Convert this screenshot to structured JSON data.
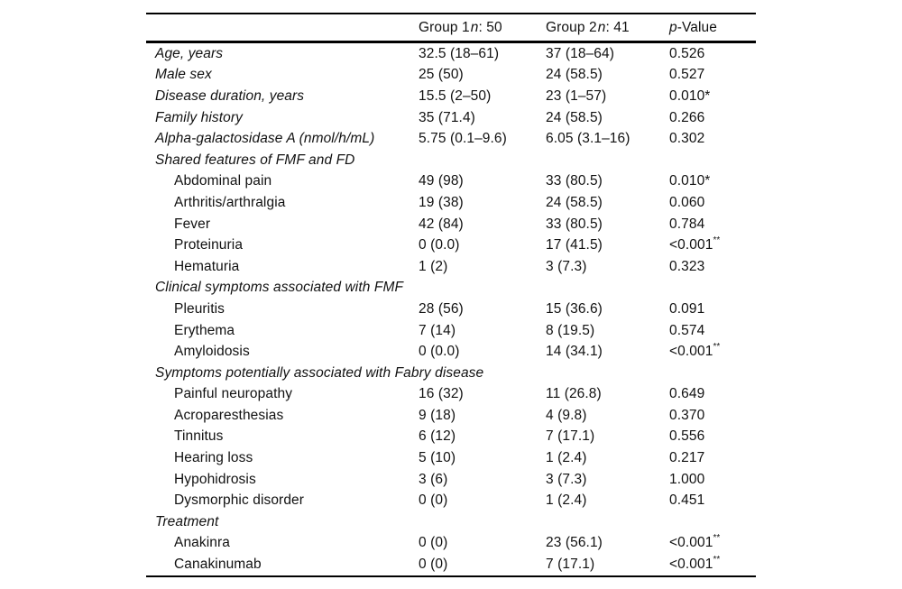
{
  "table": {
    "header": {
      "group1": {
        "prefix": "Group 1",
        "n": "n",
        "suffix": ": 50"
      },
      "group2": {
        "prefix": "Group 2",
        "n": "n",
        "suffix": ": 41"
      },
      "pvalue": {
        "p": "p",
        "suffix": "-Value"
      }
    },
    "rows": [
      {
        "type": "top",
        "label": "Age, years",
        "g1": "32.5 (18–61)",
        "g2": "37 (18–64)",
        "p": "0.526",
        "p_sup": ""
      },
      {
        "type": "top",
        "label": "Male sex",
        "g1": "25 (50)",
        "g2": "24 (58.5)",
        "p": "0.527",
        "p_sup": ""
      },
      {
        "type": "top",
        "label": "Disease duration, years",
        "g1": "15.5 (2–50)",
        "g2": "23 (1–57)",
        "p": "0.010*",
        "p_sup": ""
      },
      {
        "type": "top",
        "label": "Family history",
        "g1": "35 (71.4)",
        "g2": "24 (58.5)",
        "p": "0.266",
        "p_sup": ""
      },
      {
        "type": "top",
        "label": "Alpha-galactosidase A (nmol/h/mL)",
        "g1": "5.75 (0.1–9.6)",
        "g2": "6.05 (3.1–16)",
        "p": "0.302",
        "p_sup": ""
      },
      {
        "type": "section",
        "label": "Shared features of FMF and FD",
        "g1": "",
        "g2": "",
        "p": "",
        "p_sup": ""
      },
      {
        "type": "sub",
        "label": "Abdominal pain",
        "g1": "49 (98)",
        "g2": "33 (80.5)",
        "p": "0.010*",
        "p_sup": ""
      },
      {
        "type": "sub",
        "label": "Arthritis/arthralgia",
        "g1": "19 (38)",
        "g2": "24 (58.5)",
        "p": "0.060",
        "p_sup": ""
      },
      {
        "type": "sub",
        "label": "Fever",
        "g1": "42 (84)",
        "g2": "33 (80.5)",
        "p": "0.784",
        "p_sup": ""
      },
      {
        "type": "sub",
        "label": "Proteinuria",
        "g1": "0 (0.0)",
        "g2": "17 (41.5)",
        "p": "<0.001",
        "p_sup": "**"
      },
      {
        "type": "sub",
        "label": "Hematuria",
        "g1": "1 (2)",
        "g2": "3 (7.3)",
        "p": "0.323",
        "p_sup": ""
      },
      {
        "type": "section",
        "label": "Clinical symptoms associated with FMF",
        "g1": "",
        "g2": "",
        "p": "",
        "p_sup": ""
      },
      {
        "type": "sub",
        "label": "Pleuritis",
        "g1": "28 (56)",
        "g2": "15 (36.6)",
        "p": "0.091",
        "p_sup": ""
      },
      {
        "type": "sub",
        "label": "Erythema",
        "g1": "7 (14)",
        "g2": "8 (19.5)",
        "p": "0.574",
        "p_sup": ""
      },
      {
        "type": "sub",
        "label": "Amyloidosis",
        "g1": "0 (0.0)",
        "g2": "14 (34.1)",
        "p": "<0.001",
        "p_sup": "**"
      },
      {
        "type": "section",
        "label": "Symptoms potentially associated with Fabry disease",
        "g1": "",
        "g2": "",
        "p": "",
        "p_sup": ""
      },
      {
        "type": "sub",
        "label": "Painful neuropathy",
        "g1": "16 (32)",
        "g2": "11 (26.8)",
        "p": "0.649",
        "p_sup": ""
      },
      {
        "type": "sub",
        "label": "Acroparesthesias",
        "g1": "9 (18)",
        "g2": "4 (9.8)",
        "p": "0.370",
        "p_sup": ""
      },
      {
        "type": "sub",
        "label": "Tinnitus",
        "g1": "6 (12)",
        "g2": "7 (17.1)",
        "p": "0.556",
        "p_sup": ""
      },
      {
        "type": "sub",
        "label": "Hearing loss",
        "g1": "5 (10)",
        "g2": "1 (2.4)",
        "p": "0.217",
        "p_sup": ""
      },
      {
        "type": "sub",
        "label": "Hypohidrosis",
        "g1": "3 (6)",
        "g2": "3 (7.3)",
        "p": "1.000",
        "p_sup": ""
      },
      {
        "type": "sub",
        "label": "Dysmorphic disorder",
        "g1": "0 (0)",
        "g2": "1 (2.4)",
        "p": "0.451",
        "p_sup": ""
      },
      {
        "type": "section",
        "label": "Treatment",
        "g1": "",
        "g2": "",
        "p": "",
        "p_sup": ""
      },
      {
        "type": "sub",
        "label": "Anakinra",
        "g1": "0 (0)",
        "g2": "23 (56.1)",
        "p": "<0.001",
        "p_sup": "**"
      },
      {
        "type": "sub",
        "label": "Canakinumab",
        "g1": "0 (0)",
        "g2": "7 (17.1)",
        "p": "<0.001",
        "p_sup": "**"
      }
    ]
  }
}
